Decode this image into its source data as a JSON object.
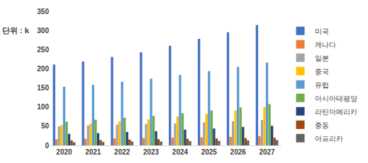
{
  "chart_data": {
    "type": "bar",
    "y_label": "단위 : k",
    "categories": [
      "2020",
      "2021",
      "2022",
      "2023",
      "2024",
      "2025",
      "2026",
      "2027"
    ],
    "series": [
      {
        "name": "미국",
        "color": "#4472c4",
        "values": [
          211,
          219,
          231,
          243,
          260,
          278,
          295,
          314
        ]
      },
      {
        "name": "캐나다",
        "color": "#ed7d31",
        "values": [
          16,
          17,
          18,
          19,
          20,
          21,
          22,
          24
        ]
      },
      {
        "name": "일본",
        "color": "#a5a5a5",
        "values": [
          50,
          52,
          54,
          56,
          57,
          60,
          63,
          66
        ]
      },
      {
        "name": "중국",
        "color": "#ffc000",
        "values": [
          53,
          57,
          63,
          68,
          75,
          82,
          91,
          100
        ]
      },
      {
        "name": "유럽",
        "color": "#5b9bd5",
        "values": [
          153,
          158,
          166,
          174,
          184,
          194,
          205,
          216
        ]
      },
      {
        "name": "아시아태평양",
        "color": "#70ad47",
        "values": [
          62,
          67,
          72,
          77,
          84,
          91,
          99,
          108
        ]
      },
      {
        "name": "라틴아메리카",
        "color": "#264478",
        "values": [
          30,
          32,
          35,
          37,
          41,
          44,
          48,
          51
        ]
      },
      {
        "name": "중동",
        "color": "#9e480e",
        "values": [
          13,
          14,
          15,
          16,
          17,
          18,
          19,
          20
        ]
      },
      {
        "name": "아프리카",
        "color": "#636363",
        "values": [
          8,
          9,
          10,
          10,
          11,
          12,
          13,
          14
        ]
      }
    ],
    "ylim": [
      0,
      350
    ],
    "yticks": [
      0,
      50,
      100,
      150,
      200,
      250,
      300,
      350
    ],
    "grid": false,
    "legend": "right"
  }
}
